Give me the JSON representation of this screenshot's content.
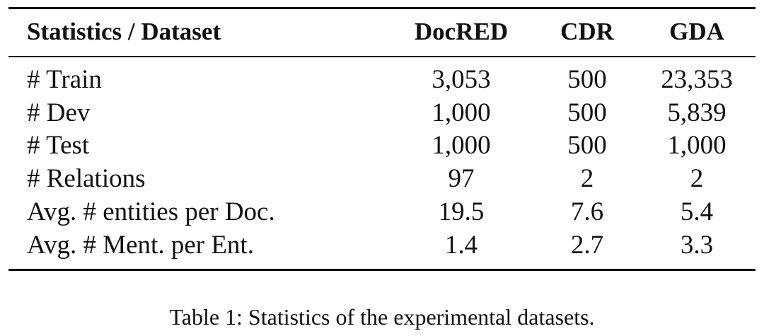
{
  "table": {
    "header": [
      "Statistics / Dataset",
      "DocRED",
      "CDR",
      "GDA"
    ],
    "rows": [
      [
        "# Train",
        "3,053",
        "500",
        "23,353"
      ],
      [
        "# Dev",
        "1,000",
        "500",
        "5,839"
      ],
      [
        "# Test",
        "1,000",
        "500",
        "1,000"
      ],
      [
        "# Relations",
        "97",
        "2",
        "2"
      ],
      [
        "Avg. # entities per Doc.",
        "19.5",
        "7.6",
        "5.4"
      ],
      [
        "Avg. # Ment. per Ent.",
        "1.4",
        "2.7",
        "3.3"
      ]
    ]
  },
  "caption": "Table 1: Statistics of the experimental datasets."
}
